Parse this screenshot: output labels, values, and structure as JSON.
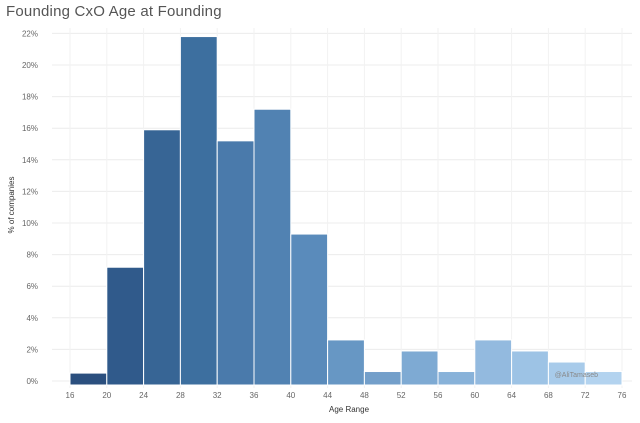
{
  "chart_data": {
    "type": "bar",
    "title": "Founding CxO Age at Founding",
    "xlabel": "Age Range",
    "ylabel": "% of companies",
    "x_ticks": [
      "16",
      "20",
      "24",
      "28",
      "32",
      "36",
      "40",
      "44",
      "48",
      "52",
      "56",
      "60",
      "64",
      "68",
      "72",
      "76"
    ],
    "y_ticks": [
      "0%",
      "2%",
      "4%",
      "6%",
      "8%",
      "10%",
      "12%",
      "14%",
      "16%",
      "18%",
      "20%",
      "22%"
    ],
    "ylim": [
      0,
      23
    ],
    "bins": [
      {
        "start": 16,
        "end": 20,
        "value": 0.5,
        "color": "#2b4f7e"
      },
      {
        "start": 20,
        "end": 24,
        "value": 7.2,
        "color": "#305a8b"
      },
      {
        "start": 24,
        "end": 28,
        "value": 15.9,
        "color": "#376595"
      },
      {
        "start": 28,
        "end": 32,
        "value": 21.8,
        "color": "#3d6f9f"
      },
      {
        "start": 32,
        "end": 36,
        "value": 15.2,
        "color": "#4a7aab"
      },
      {
        "start": 36,
        "end": 40,
        "value": 17.2,
        "color": "#5182b2"
      },
      {
        "start": 40,
        "end": 44,
        "value": 9.3,
        "color": "#5a8bbb"
      },
      {
        "start": 44,
        "end": 48,
        "value": 2.6,
        "color": "#6797c4"
      },
      {
        "start": 48,
        "end": 52,
        "value": 0.6,
        "color": "#739fca"
      },
      {
        "start": 52,
        "end": 56,
        "value": 1.9,
        "color": "#7eaad3"
      },
      {
        "start": 56,
        "end": 60,
        "value": 0.6,
        "color": "#88b2d9"
      },
      {
        "start": 60,
        "end": 64,
        "value": 2.6,
        "color": "#93badf"
      },
      {
        "start": 64,
        "end": 68,
        "value": 1.9,
        "color": "#9dc3e5"
      },
      {
        "start": 68,
        "end": 72,
        "value": 1.2,
        "color": "#a8cbea"
      },
      {
        "start": 72,
        "end": 76,
        "value": 0.6,
        "color": "#b3d3ef"
      }
    ],
    "grid": true,
    "legend": "none",
    "annotation": "@AliTamaseb"
  }
}
